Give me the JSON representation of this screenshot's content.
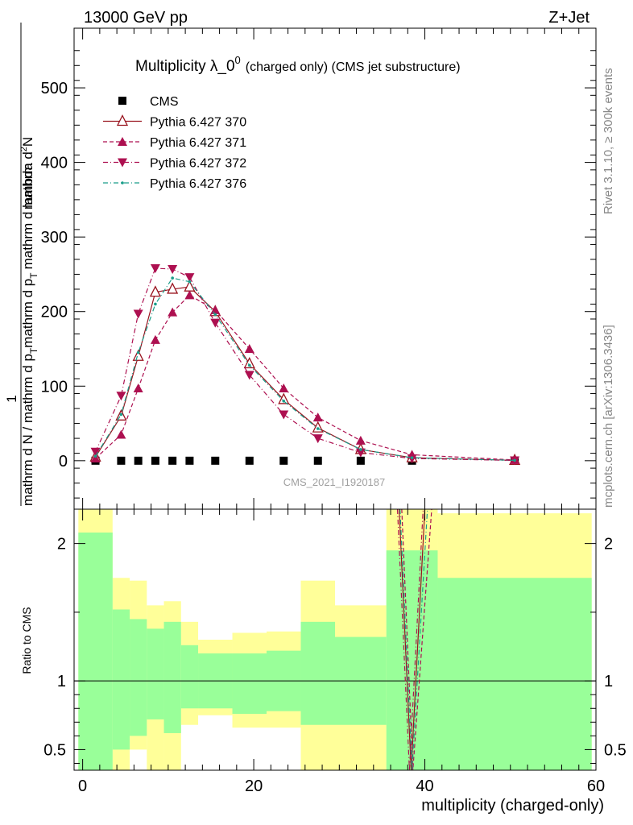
{
  "header": {
    "left": "13000 GeV pp",
    "right": "Z+Jet"
  },
  "side_text": {
    "rivet": "Rivet 3.1.10, ≥ 300k events",
    "mcplots": "mcplots.cern.ch [arXiv:1306.3436]"
  },
  "watermark": "CMS_2021_I1920187",
  "colors": {
    "cms": "#000000",
    "p370": "#99141f",
    "p371": "#ad1050",
    "p372": "#ad1050",
    "p376": "#1a9e8a",
    "band_inner": "#99ff99",
    "band_outer": "#ffff99"
  },
  "chart_data": [
    {
      "type": "line",
      "title": "Multiplicity λ_0",
      "title_superscript": "0",
      "title_suffix": "(charged only) (CMS jet substructure)",
      "ylabel_lines": [
        "1",
        "mathrm d N / mathrm d p",
        "T",
        "mathrm d p",
        "T",
        "mathrm d lambda"
      ],
      "ylabel_numerator": "mathrm d",
      "ylabel_numerator_sup": "2",
      "ylabel_numerator_rest": "N",
      "xlim": [
        -1,
        60
      ],
      "ylim": [
        -65,
        580
      ],
      "yticks": [
        0,
        100,
        200,
        300,
        400,
        500
      ],
      "ytick_labels": [
        "0",
        "100",
        "200",
        "300",
        "400",
        "500"
      ],
      "x": [
        1.5,
        4.5,
        6.5,
        8.5,
        10.5,
        12.5,
        15.5,
        19.5,
        23.5,
        27.5,
        32.5,
        38.5,
        50.5
      ],
      "series": [
        {
          "name": "CMS",
          "key": "cms",
          "marker": "square",
          "values": [
            0,
            0,
            0,
            0,
            0,
            0,
            0,
            0,
            0,
            0,
            0,
            0,
            0
          ]
        },
        {
          "name": "Pythia 6.427 370",
          "key": "p370",
          "marker": "open-triangle-up",
          "line": "solid",
          "values": [
            5,
            60,
            140,
            226,
            230,
            233,
            200,
            130,
            82,
            44,
            15,
            4,
            0.5
          ]
        },
        {
          "name": "Pythia 6.427 371",
          "key": "p371",
          "marker": "triangle-up",
          "line": "dashed",
          "values": [
            3,
            35,
            97,
            162,
            199,
            222,
            202,
            150,
            97,
            58,
            27,
            8,
            1
          ]
        },
        {
          "name": "Pythia 6.427 372",
          "key": "p372",
          "marker": "triangle-down",
          "line": "dashdot",
          "values": [
            12,
            87,
            197,
            258,
            257,
            246,
            185,
            115,
            62,
            30,
            11,
            3,
            0.3
          ]
        },
        {
          "name": "Pythia 6.427 376",
          "key": "p376",
          "marker": "dot",
          "line": "dashdot",
          "values": [
            6,
            62,
            145,
            210,
            245,
            240,
            196,
            128,
            80,
            43,
            15,
            4,
            0.5
          ]
        }
      ]
    },
    {
      "type": "area",
      "ylabel": "Ratio to CMS",
      "xlabel": "multiplicity (charged-only)",
      "xlim": [
        -1,
        60
      ],
      "ylim": [
        0.35,
        2.25
      ],
      "yticks": [
        0.5,
        1,
        2
      ],
      "ytick_labels": [
        "0.5",
        "1",
        "2"
      ],
      "xticks": [
        0,
        20,
        40,
        60
      ],
      "xtick_labels": [
        "0",
        "20",
        "40",
        "60"
      ],
      "reference_line": 1,
      "bin_edges": [
        -0.5,
        3.5,
        5.5,
        7.5,
        9.5,
        11.5,
        13.5,
        17.5,
        21.5,
        25.5,
        29.5,
        35.5,
        41.5,
        59.5
      ],
      "inner_band_upper": [
        2.08,
        1.52,
        1.45,
        1.38,
        1.43,
        1.26,
        1.2,
        1.2,
        1.22,
        1.43,
        1.32,
        1.95,
        1.75
      ],
      "inner_band_lower": [
        0.35,
        0.5,
        0.6,
        0.72,
        0.62,
        0.8,
        0.8,
        0.76,
        0.78,
        0.68,
        0.68,
        0.35,
        0.35
      ],
      "outer_band_upper": [
        2.25,
        1.75,
        1.73,
        1.55,
        1.58,
        1.43,
        1.3,
        1.35,
        1.36,
        1.73,
        1.55,
        2.25,
        2.22
      ],
      "outer_band_lower": [
        0.35,
        0.35,
        0.5,
        0.35,
        0.35,
        0.68,
        0.75,
        0.66,
        0.66,
        0.35,
        0.35,
        0.35,
        0.35
      ],
      "spike_lines": [
        {
          "key": "p370",
          "x": [
            37.0,
            38.4,
            40.0
          ],
          "y": [
            2.25,
            0.35,
            2.25
          ]
        },
        {
          "key": "p371",
          "x": [
            37.3,
            38.6,
            40.8
          ],
          "y": [
            2.25,
            0.35,
            2.25
          ]
        },
        {
          "key": "p372",
          "x": [
            36.8,
            38.2,
            39.8
          ],
          "y": [
            2.25,
            0.35,
            2.25
          ]
        },
        {
          "key": "p376",
          "x": [
            37.1,
            38.5,
            40.3
          ],
          "y": [
            2.25,
            0.35,
            2.25
          ]
        }
      ]
    }
  ]
}
